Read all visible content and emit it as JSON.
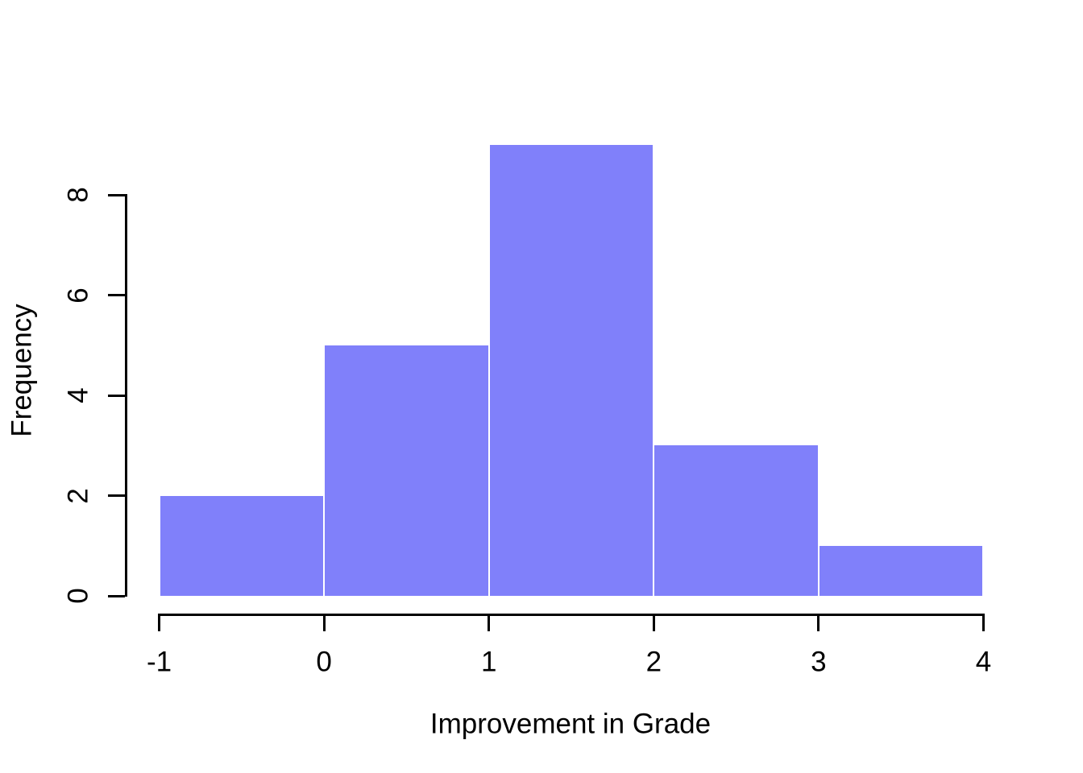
{
  "chart_data": {
    "type": "bar",
    "subtype": "histogram",
    "title": "",
    "xlabel": "Improvement in Grade",
    "ylabel": "Frequency",
    "bins": [
      {
        "x0": -1,
        "x1": 0,
        "count": 2
      },
      {
        "x0": 0,
        "x1": 1,
        "count": 5
      },
      {
        "x0": 1,
        "x1": 2,
        "count": 9
      },
      {
        "x0": 2,
        "x1": 3,
        "count": 3
      },
      {
        "x0": 3,
        "x1": 4,
        "count": 1
      }
    ],
    "categories": [
      "[-1,0]",
      "[0,1]",
      "[1,2]",
      "[2,3]",
      "[3,4]"
    ],
    "values": [
      2,
      5,
      9,
      3,
      1
    ],
    "x_ticks": [
      -1,
      0,
      1,
      2,
      3,
      4
    ],
    "y_ticks": [
      0,
      2,
      4,
      6,
      8
    ],
    "xlim": [
      -1,
      4
    ],
    "ylim": [
      0,
      9
    ],
    "grid": false,
    "legend": null,
    "bar_fill": "#8080FA",
    "bar_border": "#FFFFFF",
    "axis_color": "#000000",
    "text_color": "#000000",
    "background": "#FFFFFF"
  }
}
